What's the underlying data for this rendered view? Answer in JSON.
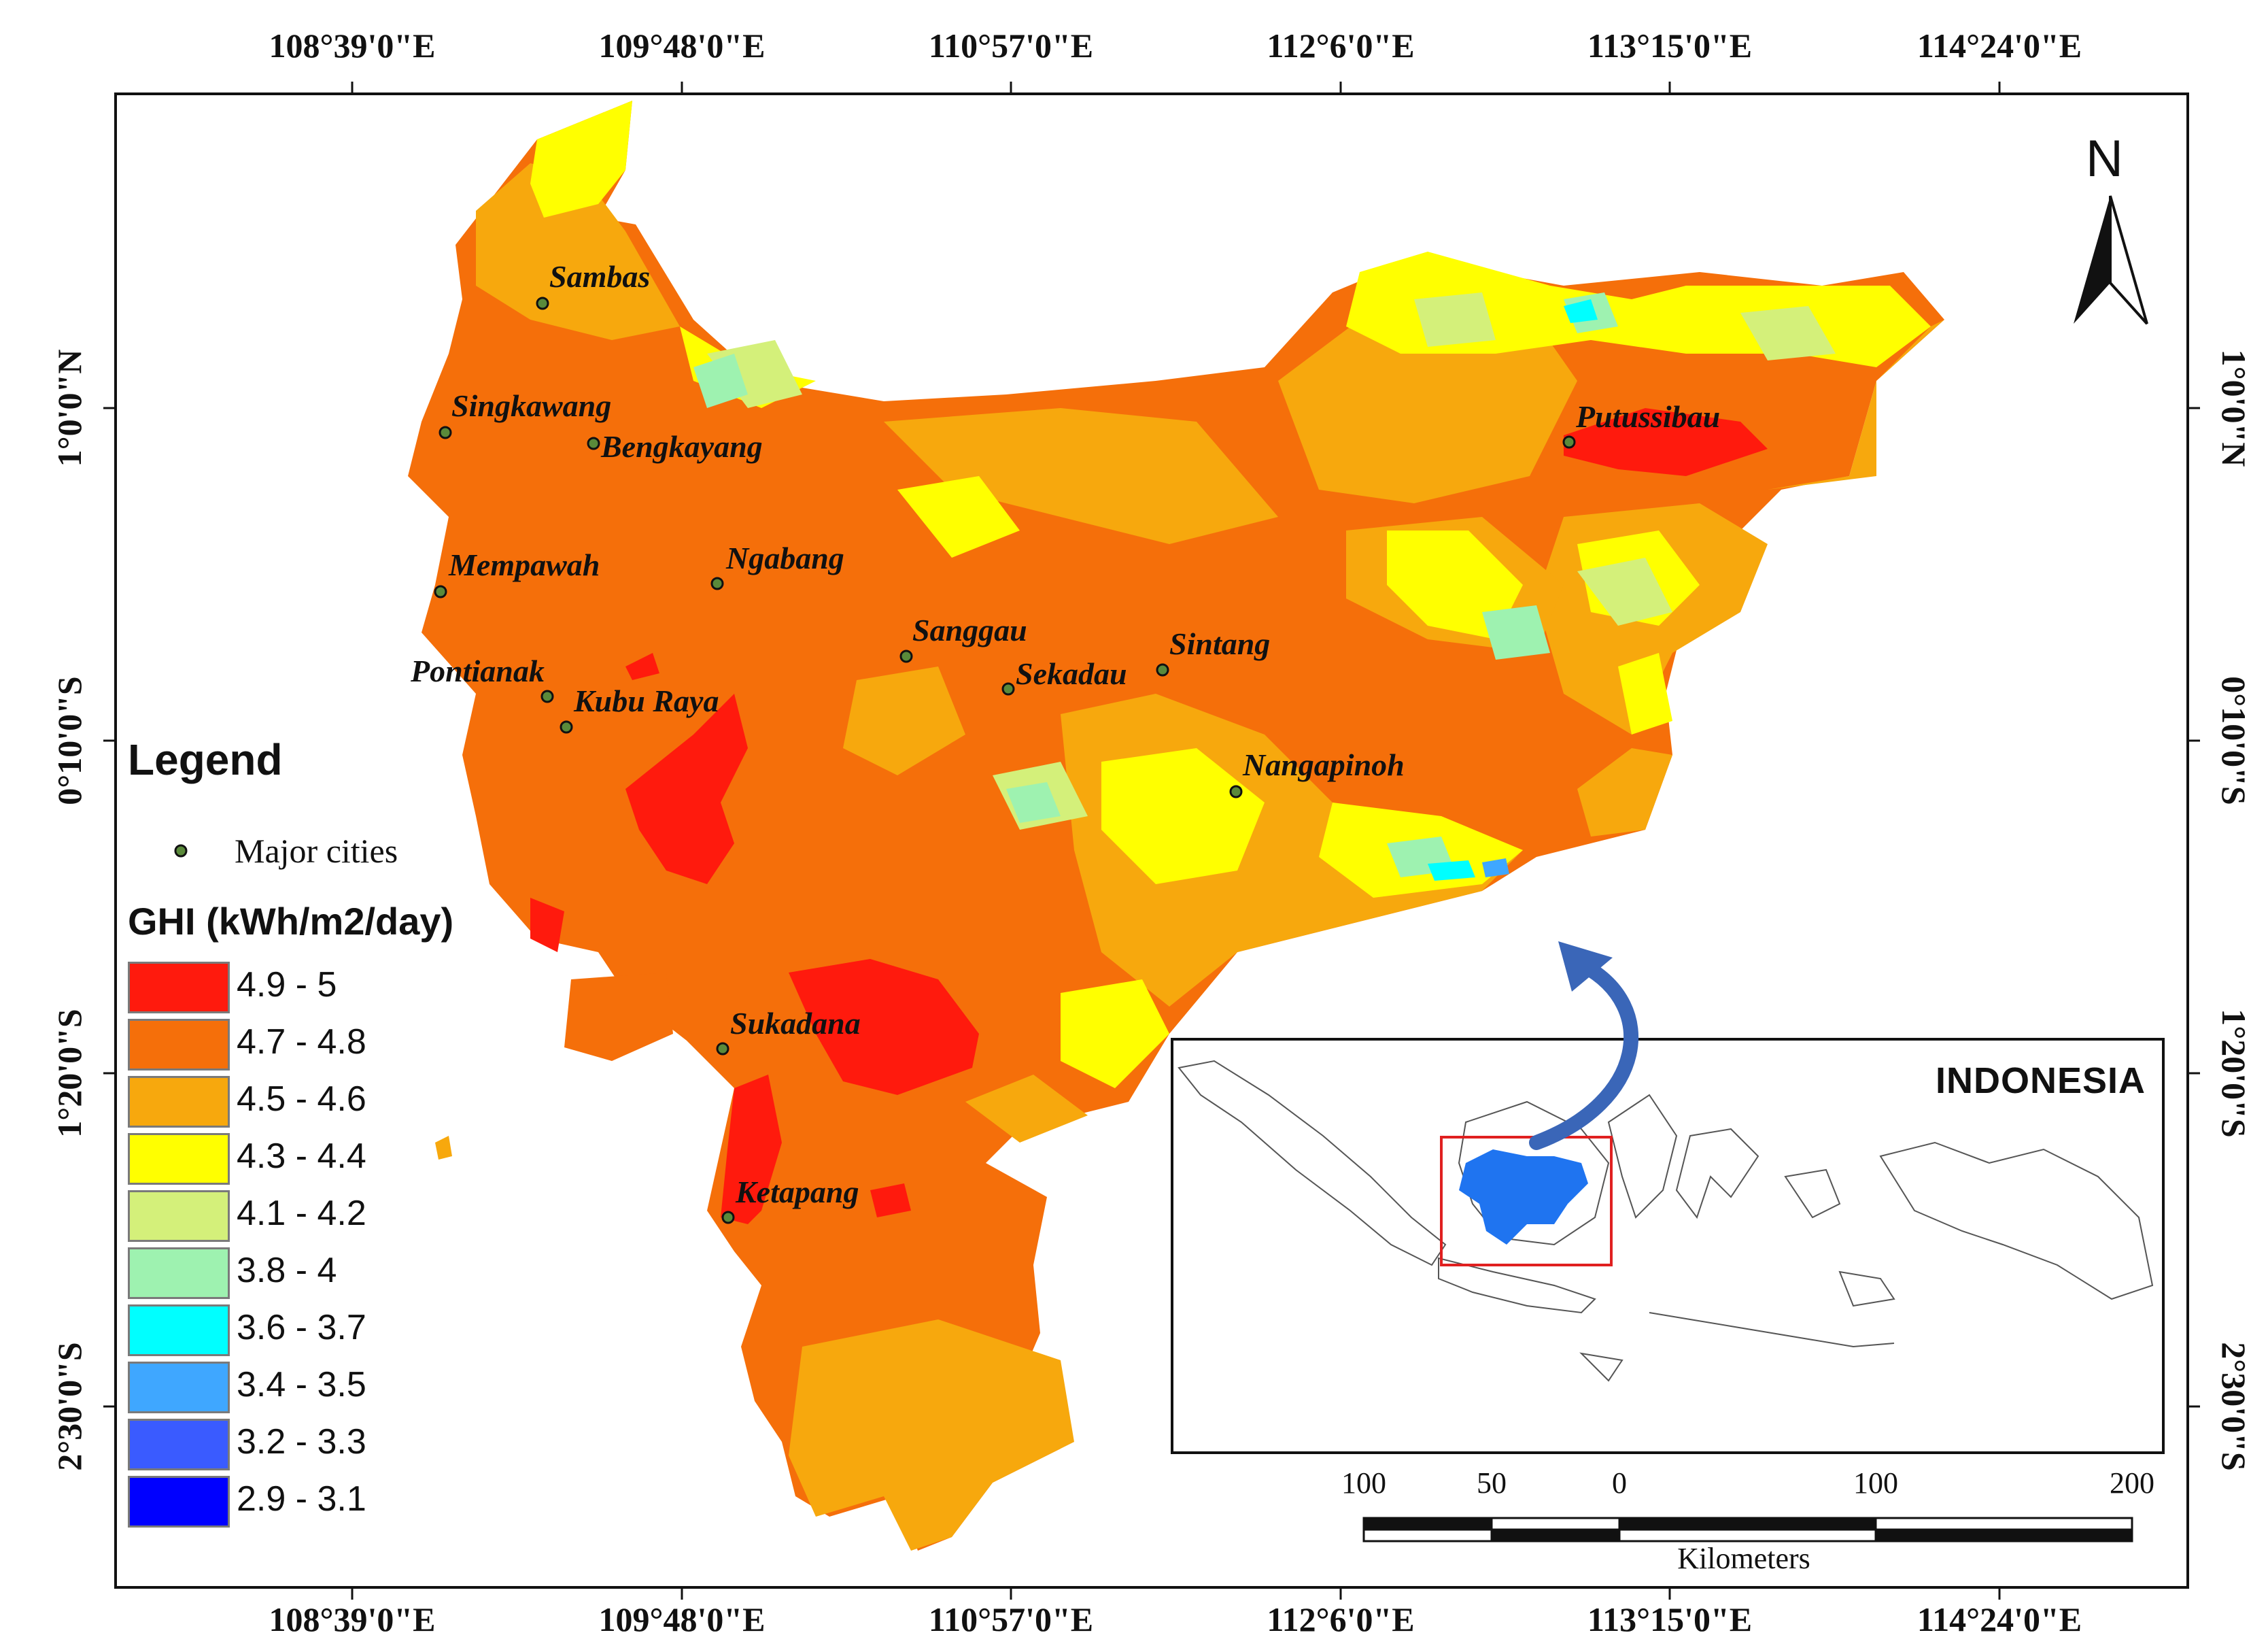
{
  "coordinates": {
    "top_labels": [
      "108°39'0\"E",
      "109°48'0\"E",
      "110°57'0\"E",
      "112°6'0\"E",
      "113°15'0\"E",
      "114°24'0\"E"
    ],
    "bottom_labels": [
      "108°39'0\"E",
      "109°48'0\"E",
      "110°57'0\"E",
      "112°6'0\"E",
      "113°15'0\"E",
      "114°24'0\"E"
    ],
    "left_labels": [
      "1°0'0\"N",
      "0°10'0\"S",
      "1°20'0\"S",
      "2°30'0\"S"
    ],
    "right_labels": [
      "1°0'0\"N",
      "0°10'0\"S",
      "1°20'0\"S",
      "2°30'0\"S"
    ]
  },
  "cities": [
    {
      "name": "Sambas"
    },
    {
      "name": "Singkawang"
    },
    {
      "name": "Bengkayang"
    },
    {
      "name": "Mempawah"
    },
    {
      "name": "Ngabang"
    },
    {
      "name": "Pontianak"
    },
    {
      "name": "Kubu Raya"
    },
    {
      "name": "Sanggau"
    },
    {
      "name": "Sekadau"
    },
    {
      "name": "Sintang"
    },
    {
      "name": "Nangapinoh"
    },
    {
      "name": "Putussibau"
    },
    {
      "name": "Sukadana"
    },
    {
      "name": "Ketapang"
    }
  ],
  "legend": {
    "title": "Legend",
    "cities_label": "Major cities",
    "ghi_title": "GHI (kWh/m2/day)",
    "classes": [
      {
        "label": "4.9 - 5",
        "color": "#ff1a0d"
      },
      {
        "label": "4.7 - 4.8",
        "color": "#f56f0a"
      },
      {
        "label": "4.5 - 4.6",
        "color": "#f7a80d"
      },
      {
        "label": "4.3 - 4.4",
        "color": "#ffff00"
      },
      {
        "label": "4.1 - 4.2",
        "color": "#d4f07a"
      },
      {
        "label": "3.8 - 4",
        "color": "#9ef2b0"
      },
      {
        "label": "3.6 - 3.7",
        "color": "#00ffff"
      },
      {
        "label": "3.4 - 3.5",
        "color": "#3fa7ff"
      },
      {
        "label": "3.2 - 3.3",
        "color": "#3a5bff"
      },
      {
        "label": "2.9 - 3.1",
        "color": "#0000ff"
      }
    ]
  },
  "inset": {
    "title": "INDONESIA",
    "highlight_color": "#1f74f0",
    "frame_color": "#e02020",
    "arrow_color": "#3a66b8"
  },
  "scale_bar": {
    "ticks": [
      "100",
      "50",
      "0",
      "100",
      "200"
    ],
    "unit": "Kilometers"
  },
  "north_arrow": {
    "label": "N"
  }
}
